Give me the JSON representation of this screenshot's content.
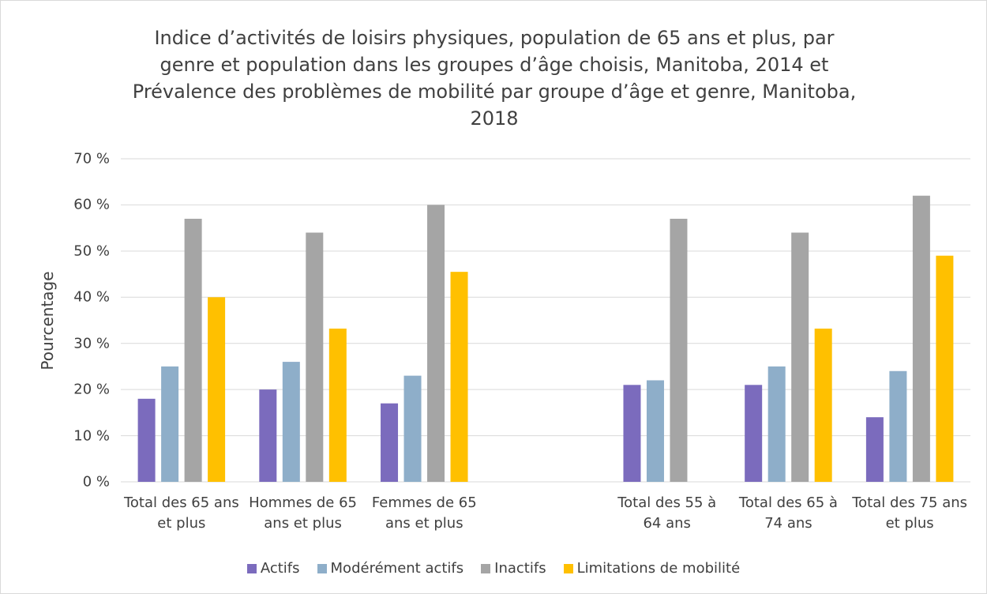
{
  "chart_data": {
    "type": "bar",
    "title": "Indice d’activités de loisirs physiques, population de 65 ans et plus, par genre et population dans les groupes d’âge choisis, Manitoba, 2014 et Prévalence des problèmes de mobilité par groupe d’âge et genre, Manitoba, 2018",
    "y_label": "Pourcentage",
    "categories": [
      "Total des 65 ans et plus",
      "Hommes de 65 ans et plus",
      "Femmes de 65 ans et plus",
      null,
      "Total des 55 à 64 ans",
      "Total des 65 à 74 ans",
      "Total des 75 ans et plus"
    ],
    "series": [
      {
        "name": "Actifs",
        "color": "#7b6bbd",
        "values": [
          18,
          20,
          17,
          null,
          21,
          21,
          14
        ]
      },
      {
        "name": "Modérément actifs",
        "color": "#8eaec9",
        "values": [
          25,
          26,
          23,
          null,
          22,
          25,
          24
        ]
      },
      {
        "name": "Inactifs",
        "color": "#a5a5a5",
        "values": [
          57,
          54,
          60,
          null,
          57,
          54,
          62
        ]
      },
      {
        "name": "Limitations de mobilité",
        "color": "#ffc000",
        "values": [
          40,
          33.2,
          45.5,
          null,
          null,
          33.2,
          49
        ]
      }
    ],
    "ylim": [
      0,
      70
    ],
    "yticks": [
      {
        "value": 0,
        "label": "0 %"
      },
      {
        "value": 10,
        "label": "10 %"
      },
      {
        "value": 20,
        "label": "20 %"
      },
      {
        "value": 30,
        "label": "30 %"
      },
      {
        "value": 40,
        "label": "40 %"
      },
      {
        "value": 50,
        "label": "50 %"
      },
      {
        "value": 60,
        "label": "60 %"
      },
      {
        "value": 70,
        "label": "70 %"
      }
    ],
    "grid": true,
    "legend": "bottom"
  }
}
